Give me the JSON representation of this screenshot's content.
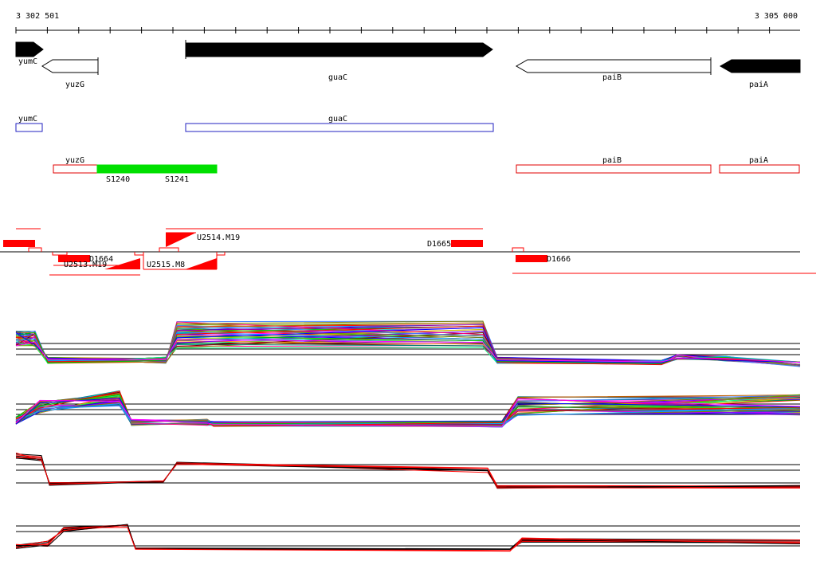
{
  "ruler": {
    "start_label": "3 302 501",
    "end_label": "3 305 000"
  },
  "genes": [
    {
      "name": "yumC",
      "strand": "+",
      "color": "#000000"
    },
    {
      "name": "yuzG",
      "strand": "-",
      "color": "#ffffff"
    },
    {
      "name": "guaC",
      "strand": "+",
      "color": "#000000"
    },
    {
      "name": "paiB",
      "strand": "-",
      "color": "#ffffff"
    },
    {
      "name": "paiA",
      "strand": "-",
      "color": "#000000"
    }
  ],
  "blue_features": [
    "yumC",
    "guaC"
  ],
  "red_features": [
    "yuzG",
    "paiB",
    "paiA"
  ],
  "green_features": [
    "S1240",
    "S1241"
  ],
  "probe_labels": [
    "D1664",
    "U2513.M19",
    "U2514.M19",
    "U2515.M8",
    "D1665",
    "D1666"
  ],
  "colors": {
    "gene_fill_plus": "#000000",
    "feature_blue": "#2020c0",
    "feature_red": "#e00000",
    "feature_green": "#00e000",
    "probe_red": "#ff0000"
  },
  "expression_panels": [
    {
      "name": "panel-1",
      "palette": "multicolor"
    },
    {
      "name": "panel-2",
      "palette": "multicolor"
    },
    {
      "name": "panel-3",
      "palette": "black-red"
    },
    {
      "name": "panel-4",
      "palette": "black-red"
    }
  ]
}
